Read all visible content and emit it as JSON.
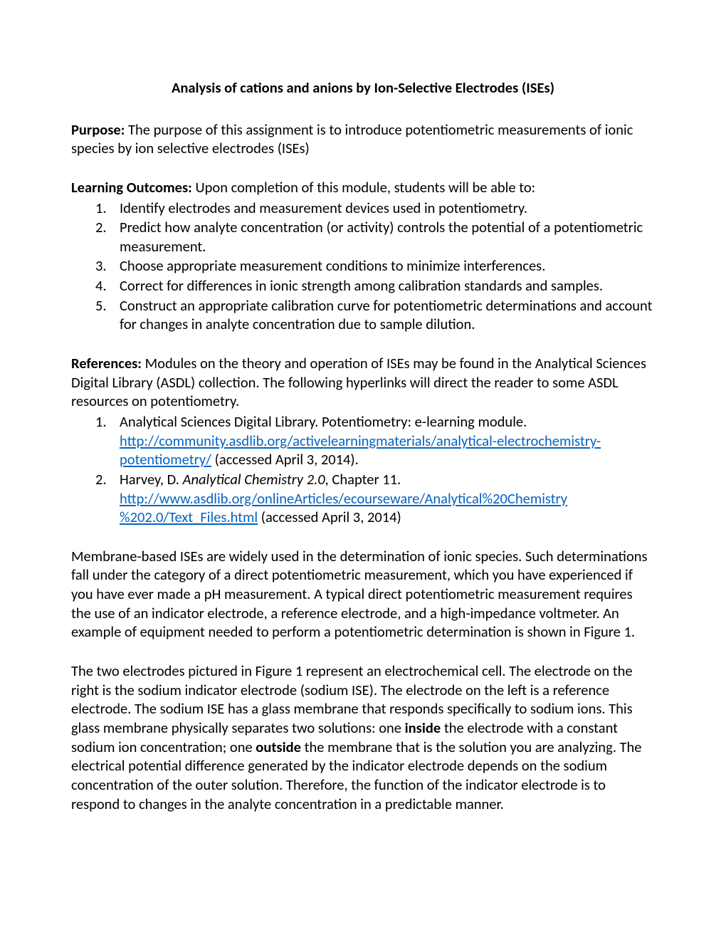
{
  "title": "Analysis of cations and anions by Ion-Selective Electrodes (ISEs)",
  "purpose": {
    "label": "Purpose:",
    "text": " The purpose of this assignment is to introduce potentiometric measurements of ionic species by ion selective electrodes (ISEs)"
  },
  "outcomes": {
    "label": "Learning Outcomes:",
    "intro": " Upon completion of this module, students will be able to:",
    "items": [
      "Identify electrodes and measurement devices used in potentiometry.",
      "Predict how analyte concentration (or activity) controls the potential of a potentiometric measurement.",
      "Choose appropriate measurement conditions to minimize interferences.",
      "Correct for differences in ionic strength among calibration standards and samples.",
      "Construct an appropriate calibration curve for potentiometric determinations and account for changes in analyte concentration due to sample dilution."
    ]
  },
  "references": {
    "label": "References:",
    "intro": " Modules on the theory and operation of ISEs may be found in the Analytical Sciences Digital Library (ASDL) collection. The following hyperlinks will direct the reader to some ASDL resources on potentiometry.",
    "item1_pre": "Analytical Sciences Digital Library. Potentiometry: e-learning module. ",
    "item1_link": "http://community.asdlib.org/activelearningmaterials/analytical-electrochemistry-potentiometry/",
    "item1_post": "  (accessed April 3, 2014).",
    "item2_pre": "Harvey, D. ",
    "item2_italic": "Analytical Chemistry 2.0",
    "item2_mid": ", Chapter 11. ",
    "item2_link1": "http://www.asdlib.org/onlineArticles/ecourseware/Analytical%20Chemistry",
    "item2_link2": "%202.0/Text_Files.html",
    "item2_post": " (accessed April 3, 2014)"
  },
  "body1": "Membrane-based ISEs are widely used in the determination of ionic species. Such determinations fall under the category of a direct potentiometric measurement, which you have experienced if you have ever made a pH measurement. A typical direct potentiometric measurement requires the use of an indicator electrode, a reference electrode, and a high-impedance voltmeter. An example of equipment needed to perform a potentiometric determination is shown in Figure 1.",
  "body2_a": "The two electrodes pictured in Figure 1 represent an electrochemical cell. The electrode on the right is the sodium indicator electrode (sodium ISE). The electrode on the left is a reference electrode. The sodium ISE has a glass membrane that responds specifically to sodium ions. This glass membrane physically separates two solutions: one ",
  "body2_bold1": "inside",
  "body2_b": " the electrode with a constant sodium ion concentration; one ",
  "body2_bold2": "outside",
  "body2_c": " the membrane that is the solution you are analyzing. The electrical potential difference generated by the indicator electrode depends on the sodium concentration of the outer solution. Therefore, the function of the indicator electrode is to respond to changes in the analyte concentration in a predictable manner.",
  "nums": [
    "1.",
    "2.",
    "3.",
    "4.",
    "5."
  ]
}
